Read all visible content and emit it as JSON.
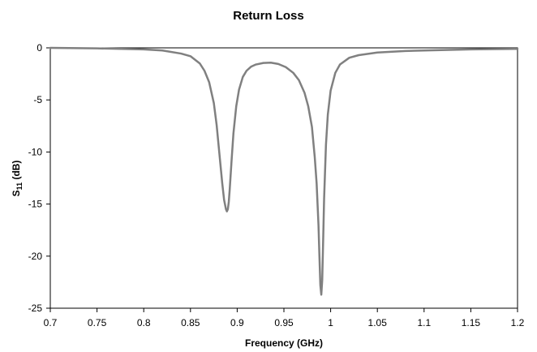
{
  "chart_data": {
    "type": "line",
    "title": "Return Loss",
    "xlabel": "Frequency (GHz)",
    "ylabel_main": "S",
    "ylabel_sub": "11",
    "ylabel_unit": " (dB)",
    "xlim": [
      0.7,
      1.2
    ],
    "ylim": [
      -25,
      0
    ],
    "xticks": [
      "0.7",
      "0.75",
      "0.8",
      "0.85",
      "0.9",
      "0.95",
      "1",
      "1.05",
      "1.1",
      "1.15",
      "1.2"
    ],
    "yticks": [
      "0",
      "-5",
      "-10",
      "-15",
      "-20",
      "-25"
    ],
    "grid": false,
    "legend": "none",
    "line_color": "#808080",
    "series": [
      {
        "x": [
          0.7,
          0.75,
          0.8,
          0.82,
          0.84,
          0.85,
          0.86,
          0.865,
          0.87,
          0.875,
          0.878,
          0.881,
          0.884,
          0.886,
          0.888,
          0.889,
          0.89,
          0.891,
          0.892,
          0.894,
          0.896,
          0.899,
          0.902,
          0.906,
          0.91,
          0.915,
          0.92,
          0.928,
          0.936,
          0.944,
          0.952,
          0.96,
          0.966,
          0.972,
          0.976,
          0.98,
          0.983,
          0.985,
          0.987,
          0.988,
          0.989,
          0.99,
          0.991,
          0.992,
          0.993,
          0.995,
          0.997,
          1.0,
          1.005,
          1.01,
          1.02,
          1.03,
          1.05,
          1.08,
          1.1,
          1.15,
          1.2
        ],
        "y": [
          0.0,
          -0.05,
          -0.15,
          -0.25,
          -0.55,
          -0.8,
          -1.5,
          -2.2,
          -3.3,
          -5.3,
          -7.4,
          -10.2,
          -13.0,
          -14.6,
          -15.5,
          -15.7,
          -15.5,
          -14.8,
          -13.6,
          -10.8,
          -8.2,
          -5.6,
          -4.0,
          -2.8,
          -2.2,
          -1.8,
          -1.6,
          -1.45,
          -1.42,
          -1.55,
          -1.85,
          -2.4,
          -3.1,
          -4.3,
          -5.6,
          -7.6,
          -10.5,
          -13.0,
          -17.0,
          -20.0,
          -22.8,
          -23.7,
          -22.3,
          -18.5,
          -14.5,
          -9.3,
          -6.4,
          -4.1,
          -2.4,
          -1.6,
          -0.95,
          -0.7,
          -0.45,
          -0.3,
          -0.25,
          -0.15,
          -0.1
        ]
      }
    ]
  }
}
